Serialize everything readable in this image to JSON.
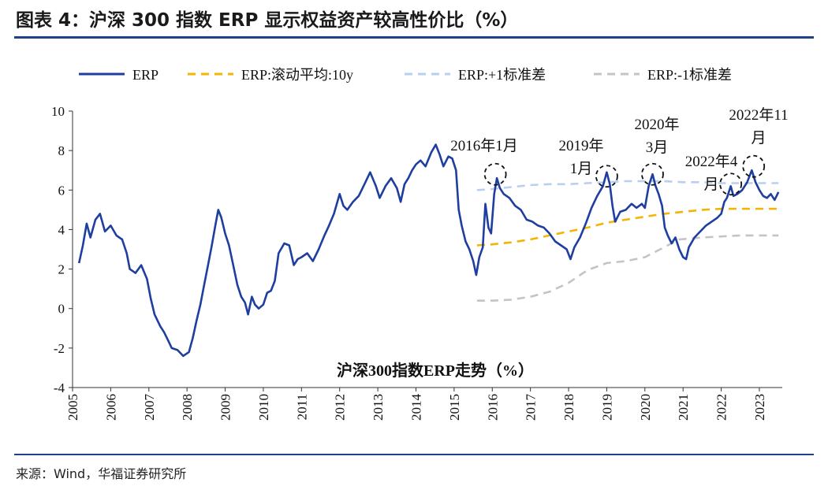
{
  "header": {
    "title": "图表 4：沪深 300 指数 ERP 显示权益资产较高性价比（%）"
  },
  "footer": {
    "source": "来源：Wind，华福证券研究所"
  },
  "chart_data": {
    "type": "line",
    "title": "沪深300指数ERP走势（%）",
    "xlabel": "",
    "ylabel": "",
    "xlim": [
      2005.0,
      2023.6
    ],
    "ylim": [
      -4,
      10
    ],
    "y_ticks": [
      10,
      8,
      6,
      4,
      2,
      0,
      -2,
      -4
    ],
    "x_ticks": [
      "2005",
      "2006",
      "2007",
      "2008",
      "2009",
      "2010",
      "2011",
      "2012",
      "2013",
      "2014",
      "2015",
      "2016",
      "2017",
      "2018",
      "2019",
      "2020",
      "2021",
      "2022",
      "2023"
    ],
    "legend_position": "top",
    "series": [
      {
        "name": "ERP",
        "color": "#1e3ea0",
        "style": "solid",
        "points": [
          [
            2005.17,
            2.3
          ],
          [
            2005.27,
            3.2
          ],
          [
            2005.37,
            4.3
          ],
          [
            2005.47,
            3.6
          ],
          [
            2005.6,
            4.5
          ],
          [
            2005.72,
            4.8
          ],
          [
            2005.85,
            3.9
          ],
          [
            2006.0,
            4.2
          ],
          [
            2006.15,
            3.7
          ],
          [
            2006.3,
            3.5
          ],
          [
            2006.42,
            2.8
          ],
          [
            2006.5,
            2.0
          ],
          [
            2006.65,
            1.8
          ],
          [
            2006.8,
            2.2
          ],
          [
            2006.95,
            1.5
          ],
          [
            2007.05,
            0.5
          ],
          [
            2007.15,
            -0.3
          ],
          [
            2007.3,
            -0.9
          ],
          [
            2007.4,
            -1.2
          ],
          [
            2007.5,
            -1.6
          ],
          [
            2007.6,
            -2.0
          ],
          [
            2007.75,
            -2.1
          ],
          [
            2007.9,
            -2.4
          ],
          [
            2008.05,
            -2.2
          ],
          [
            2008.15,
            -1.5
          ],
          [
            2008.25,
            -0.6
          ],
          [
            2008.35,
            0.2
          ],
          [
            2008.45,
            1.2
          ],
          [
            2008.55,
            2.2
          ],
          [
            2008.65,
            3.2
          ],
          [
            2008.75,
            4.3
          ],
          [
            2008.82,
            5.0
          ],
          [
            2008.9,
            4.6
          ],
          [
            2009.0,
            3.8
          ],
          [
            2009.1,
            3.2
          ],
          [
            2009.2,
            2.3
          ],
          [
            2009.32,
            1.2
          ],
          [
            2009.42,
            0.6
          ],
          [
            2009.52,
            0.3
          ],
          [
            2009.6,
            -0.3
          ],
          [
            2009.7,
            0.6
          ],
          [
            2009.78,
            0.2
          ],
          [
            2009.88,
            0.0
          ],
          [
            2010.0,
            0.2
          ],
          [
            2010.1,
            0.8
          ],
          [
            2010.2,
            0.9
          ],
          [
            2010.3,
            1.4
          ],
          [
            2010.4,
            2.8
          ],
          [
            2010.55,
            3.3
          ],
          [
            2010.68,
            3.2
          ],
          [
            2010.8,
            2.2
          ],
          [
            2010.9,
            2.5
          ],
          [
            2011.0,
            2.6
          ],
          [
            2011.15,
            2.8
          ],
          [
            2011.3,
            2.4
          ],
          [
            2011.45,
            3.0
          ],
          [
            2011.6,
            3.7
          ],
          [
            2011.72,
            4.2
          ],
          [
            2011.85,
            4.8
          ],
          [
            2012.0,
            5.8
          ],
          [
            2012.1,
            5.2
          ],
          [
            2012.2,
            5.0
          ],
          [
            2012.35,
            5.4
          ],
          [
            2012.5,
            5.7
          ],
          [
            2012.65,
            6.3
          ],
          [
            2012.8,
            6.9
          ],
          [
            2012.95,
            6.2
          ],
          [
            2013.05,
            5.6
          ],
          [
            2013.2,
            6.2
          ],
          [
            2013.35,
            6.6
          ],
          [
            2013.5,
            6.1
          ],
          [
            2013.6,
            5.4
          ],
          [
            2013.7,
            6.3
          ],
          [
            2013.8,
            6.6
          ],
          [
            2013.9,
            7.0
          ],
          [
            2014.0,
            7.3
          ],
          [
            2014.12,
            7.5
          ],
          [
            2014.25,
            7.2
          ],
          [
            2014.4,
            7.9
          ],
          [
            2014.52,
            8.3
          ],
          [
            2014.62,
            7.8
          ],
          [
            2014.72,
            7.2
          ],
          [
            2014.85,
            7.7
          ],
          [
            2014.95,
            7.6
          ],
          [
            2015.05,
            7.0
          ],
          [
            2015.12,
            5.0
          ],
          [
            2015.2,
            4.2
          ],
          [
            2015.3,
            3.4
          ],
          [
            2015.4,
            3.0
          ],
          [
            2015.5,
            2.4
          ],
          [
            2015.58,
            1.7
          ],
          [
            2015.66,
            2.6
          ],
          [
            2015.75,
            3.1
          ],
          [
            2015.82,
            5.3
          ],
          [
            2015.9,
            4.1
          ],
          [
            2015.97,
            3.8
          ],
          [
            2016.05,
            5.8
          ],
          [
            2016.12,
            6.6
          ],
          [
            2016.2,
            6.1
          ],
          [
            2016.3,
            5.8
          ],
          [
            2016.45,
            5.6
          ],
          [
            2016.6,
            5.2
          ],
          [
            2016.75,
            5.0
          ],
          [
            2016.9,
            4.5
          ],
          [
            2017.05,
            4.4
          ],
          [
            2017.2,
            4.2
          ],
          [
            2017.35,
            4.1
          ],
          [
            2017.5,
            3.8
          ],
          [
            2017.65,
            3.4
          ],
          [
            2017.8,
            3.2
          ],
          [
            2017.95,
            3.0
          ],
          [
            2018.05,
            2.5
          ],
          [
            2018.15,
            3.1
          ],
          [
            2018.3,
            3.6
          ],
          [
            2018.45,
            4.3
          ],
          [
            2018.6,
            5.1
          ],
          [
            2018.75,
            5.7
          ],
          [
            2018.9,
            6.2
          ],
          [
            2019.0,
            6.9
          ],
          [
            2019.08,
            6.3
          ],
          [
            2019.15,
            5.2
          ],
          [
            2019.22,
            4.4
          ],
          [
            2019.35,
            4.9
          ],
          [
            2019.5,
            5.0
          ],
          [
            2019.65,
            5.3
          ],
          [
            2019.78,
            5.1
          ],
          [
            2019.92,
            5.3
          ],
          [
            2020.0,
            5.1
          ],
          [
            2020.1,
            6.2
          ],
          [
            2020.2,
            6.8
          ],
          [
            2020.28,
            6.2
          ],
          [
            2020.36,
            5.8
          ],
          [
            2020.45,
            5.2
          ],
          [
            2020.52,
            4.1
          ],
          [
            2020.6,
            3.7
          ],
          [
            2020.7,
            3.3
          ],
          [
            2020.8,
            3.6
          ],
          [
            2020.9,
            3.0
          ],
          [
            2021.0,
            2.6
          ],
          [
            2021.08,
            2.5
          ],
          [
            2021.15,
            3.1
          ],
          [
            2021.3,
            3.6
          ],
          [
            2021.45,
            3.9
          ],
          [
            2021.6,
            4.2
          ],
          [
            2021.75,
            4.4
          ],
          [
            2021.9,
            4.6
          ],
          [
            2022.0,
            4.8
          ],
          [
            2022.08,
            5.4
          ],
          [
            2022.15,
            5.6
          ],
          [
            2022.25,
            6.2
          ],
          [
            2022.32,
            5.7
          ],
          [
            2022.42,
            5.8
          ],
          [
            2022.55,
            6.0
          ],
          [
            2022.68,
            6.4
          ],
          [
            2022.8,
            7.0
          ],
          [
            2022.9,
            6.4
          ],
          [
            2023.0,
            6.0
          ],
          [
            2023.1,
            5.7
          ],
          [
            2023.2,
            5.6
          ],
          [
            2023.3,
            5.8
          ],
          [
            2023.4,
            5.5
          ],
          [
            2023.5,
            5.9
          ]
        ]
      },
      {
        "name": "ERP:滚动平均:10y",
        "color": "#f4b400",
        "style": "dashed",
        "points": [
          [
            2015.6,
            3.2
          ],
          [
            2016.0,
            3.25
          ],
          [
            2016.5,
            3.35
          ],
          [
            2017.0,
            3.5
          ],
          [
            2017.5,
            3.7
          ],
          [
            2018.0,
            3.9
          ],
          [
            2018.5,
            4.1
          ],
          [
            2019.0,
            4.35
          ],
          [
            2019.5,
            4.5
          ],
          [
            2020.0,
            4.65
          ],
          [
            2020.5,
            4.8
          ],
          [
            2021.0,
            4.9
          ],
          [
            2021.5,
            5.0
          ],
          [
            2022.0,
            5.05
          ],
          [
            2022.5,
            5.05
          ],
          [
            2023.0,
            5.05
          ],
          [
            2023.5,
            5.05
          ]
        ]
      },
      {
        "name": "ERP:+1标准差",
        "color": "#b9cff0",
        "style": "dashed",
        "points": [
          [
            2015.6,
            6.0
          ],
          [
            2016.0,
            6.05
          ],
          [
            2016.5,
            6.15
          ],
          [
            2017.0,
            6.25
          ],
          [
            2017.5,
            6.3
          ],
          [
            2018.0,
            6.3
          ],
          [
            2018.5,
            6.35
          ],
          [
            2019.0,
            6.4
          ],
          [
            2019.5,
            6.45
          ],
          [
            2020.0,
            6.45
          ],
          [
            2020.5,
            6.45
          ],
          [
            2021.0,
            6.4
          ],
          [
            2021.5,
            6.4
          ],
          [
            2022.0,
            6.35
          ],
          [
            2022.5,
            6.35
          ],
          [
            2023.0,
            6.35
          ],
          [
            2023.5,
            6.35
          ]
        ]
      },
      {
        "name": "ERP:-1标准差",
        "color": "#c4c4c4",
        "style": "dashed",
        "points": [
          [
            2015.6,
            0.4
          ],
          [
            2016.0,
            0.4
          ],
          [
            2016.5,
            0.45
          ],
          [
            2017.0,
            0.6
          ],
          [
            2017.5,
            0.85
          ],
          [
            2018.0,
            1.3
          ],
          [
            2018.5,
            1.95
          ],
          [
            2019.0,
            2.3
          ],
          [
            2019.5,
            2.4
          ],
          [
            2020.0,
            2.6
          ],
          [
            2020.5,
            3.1
          ],
          [
            2020.9,
            3.5
          ],
          [
            2021.5,
            3.6
          ],
          [
            2022.0,
            3.65
          ],
          [
            2022.5,
            3.7
          ],
          [
            2023.0,
            3.7
          ],
          [
            2023.5,
            3.7
          ]
        ]
      }
    ],
    "annotations": [
      {
        "lines": [
          "2016年1月"
        ],
        "x": 2016.08,
        "y": 6.8
      },
      {
        "lines": [
          "2019年",
          "1月"
        ],
        "x": 2019.0,
        "y": 6.7
      },
      {
        "lines": [
          "2020年",
          "3月"
        ],
        "x": 2020.2,
        "y": 6.8
      },
      {
        "lines": [
          "2022年4",
          "月"
        ],
        "x": 2022.25,
        "y": 6.3
      },
      {
        "lines": [
          "2022年11",
          "月"
        ],
        "x": 2022.85,
        "y": 7.2
      }
    ]
  }
}
